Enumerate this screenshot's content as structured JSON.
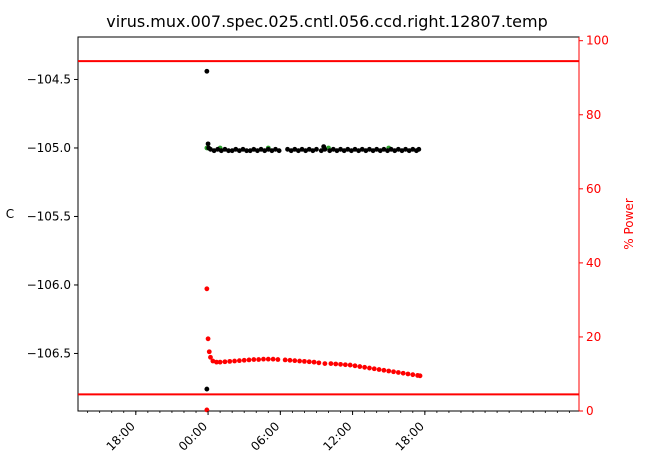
{
  "chart_data": {
    "type": "scatter",
    "title": "virus.mux.007.spec.025.cntl.056.ccd.right.12807.temp",
    "ylabel_left": "C",
    "ylabel_right": "% Power",
    "ylim_left": [
      -106.92,
      -104.19
    ],
    "ylim_right": [
      0,
      101
    ],
    "yticks_left": [
      -104.5,
      -105.0,
      -105.5,
      -106.0,
      -106.5
    ],
    "ytick_labels_left": [
      "−104.5",
      "−105.0",
      "−105.5",
      "−106.0",
      "−106.5"
    ],
    "yticks_right": [
      0,
      20,
      40,
      60,
      80,
      100
    ],
    "ytick_labels_right": [
      "0",
      "20",
      "40",
      "60",
      "80",
      "100"
    ],
    "x_unit": "hours",
    "xlim": [
      -10.8,
      30.8
    ],
    "xticks": [
      -6,
      0,
      6,
      12,
      18
    ],
    "xtick_labels": [
      "18:00",
      "00:00",
      "06:00",
      "12:00",
      "18:00"
    ],
    "minor_tick_step_hours": 1,
    "hlines": [
      {
        "axis": "right",
        "value": 94.5,
        "color": "#ff0000"
      },
      {
        "axis": "right",
        "value": 4.5,
        "color": "#ff0000"
      }
    ],
    "series": [
      {
        "axis": "left",
        "color": "#2ca02c",
        "points": [
          [
            -0.1,
            -105.0
          ],
          [
            0.0,
            -105.0
          ],
          [
            1.0,
            -105.0
          ],
          [
            5.0,
            -105.0
          ],
          [
            10.0,
            -105.0
          ],
          [
            15.0,
            -105.0
          ]
        ]
      },
      {
        "axis": "left",
        "color": "#000000",
        "points": [
          [
            -0.1,
            -104.44
          ],
          [
            0.0,
            -104.97
          ],
          [
            0.05,
            -105.0
          ],
          [
            -0.1,
            -106.76
          ],
          [
            0.2,
            -105.01
          ],
          [
            0.5,
            -105.02
          ],
          [
            0.8,
            -105.01
          ],
          [
            1.1,
            -105.02
          ],
          [
            1.4,
            -105.01
          ],
          [
            1.7,
            -105.02
          ],
          [
            2.0,
            -105.02
          ],
          [
            2.3,
            -105.01
          ],
          [
            2.6,
            -105.02
          ],
          [
            2.9,
            -105.01
          ],
          [
            3.2,
            -105.02
          ],
          [
            3.5,
            -105.02
          ],
          [
            3.8,
            -105.01
          ],
          [
            4.1,
            -105.02
          ],
          [
            4.4,
            -105.01
          ],
          [
            4.7,
            -105.02
          ],
          [
            5.0,
            -105.01
          ],
          [
            5.3,
            -105.02
          ],
          [
            5.6,
            -105.01
          ],
          [
            5.9,
            -105.02
          ],
          [
            6.6,
            -105.01
          ],
          [
            6.9,
            -105.02
          ],
          [
            7.2,
            -105.01
          ],
          [
            7.5,
            -105.02
          ],
          [
            7.8,
            -105.01
          ],
          [
            8.1,
            -105.02
          ],
          [
            8.4,
            -105.01
          ],
          [
            8.7,
            -105.02
          ],
          [
            9.0,
            -105.01
          ],
          [
            9.4,
            -105.02
          ],
          [
            9.6,
            -104.99
          ],
          [
            9.7,
            -105.01
          ],
          [
            10.1,
            -105.02
          ],
          [
            10.4,
            -105.01
          ],
          [
            10.7,
            -105.02
          ],
          [
            11.0,
            -105.01
          ],
          [
            11.3,
            -105.02
          ],
          [
            11.6,
            -105.01
          ],
          [
            11.9,
            -105.02
          ],
          [
            12.2,
            -105.01
          ],
          [
            12.5,
            -105.02
          ],
          [
            12.8,
            -105.01
          ],
          [
            13.1,
            -105.02
          ],
          [
            13.4,
            -105.01
          ],
          [
            13.7,
            -105.02
          ],
          [
            14.0,
            -105.01
          ],
          [
            14.3,
            -105.02
          ],
          [
            14.6,
            -105.01
          ],
          [
            14.9,
            -105.02
          ],
          [
            15.2,
            -105.01
          ],
          [
            15.5,
            -105.02
          ],
          [
            15.8,
            -105.01
          ],
          [
            16.1,
            -105.02
          ],
          [
            16.4,
            -105.01
          ],
          [
            16.7,
            -105.02
          ],
          [
            17.0,
            -105.01
          ],
          [
            17.3,
            -105.02
          ],
          [
            17.5,
            -105.01
          ]
        ]
      },
      {
        "axis": "right",
        "color": "#ff0000",
        "points": [
          [
            -0.1,
            0.3
          ],
          [
            -0.1,
            33.0
          ],
          [
            0.0,
            19.5
          ],
          [
            0.1,
            16.0
          ],
          [
            0.2,
            14.5
          ],
          [
            0.4,
            13.5
          ],
          [
            0.7,
            13.2
          ],
          [
            1.0,
            13.2
          ],
          [
            1.4,
            13.3
          ],
          [
            1.8,
            13.4
          ],
          [
            2.2,
            13.5
          ],
          [
            2.6,
            13.6
          ],
          [
            3.0,
            13.7
          ],
          [
            3.4,
            13.8
          ],
          [
            3.8,
            13.9
          ],
          [
            4.2,
            13.9
          ],
          [
            4.6,
            14.0
          ],
          [
            5.0,
            14.0
          ],
          [
            5.4,
            14.0
          ],
          [
            5.8,
            13.9
          ],
          [
            6.4,
            13.8
          ],
          [
            6.8,
            13.7
          ],
          [
            7.2,
            13.6
          ],
          [
            7.6,
            13.5
          ],
          [
            8.0,
            13.4
          ],
          [
            8.4,
            13.3
          ],
          [
            8.8,
            13.2
          ],
          [
            9.2,
            13.0
          ],
          [
            9.7,
            12.8
          ],
          [
            10.2,
            12.8
          ],
          [
            10.6,
            12.7
          ],
          [
            11.0,
            12.6
          ],
          [
            11.4,
            12.5
          ],
          [
            11.8,
            12.4
          ],
          [
            12.2,
            12.2
          ],
          [
            12.6,
            12.0
          ],
          [
            13.0,
            11.8
          ],
          [
            13.4,
            11.6
          ],
          [
            13.8,
            11.4
          ],
          [
            14.2,
            11.2
          ],
          [
            14.6,
            11.0
          ],
          [
            15.0,
            10.8
          ],
          [
            15.4,
            10.6
          ],
          [
            15.8,
            10.4
          ],
          [
            16.2,
            10.2
          ],
          [
            16.6,
            10.0
          ],
          [
            17.0,
            9.8
          ],
          [
            17.4,
            9.6
          ],
          [
            17.6,
            9.5
          ]
        ]
      }
    ]
  }
}
